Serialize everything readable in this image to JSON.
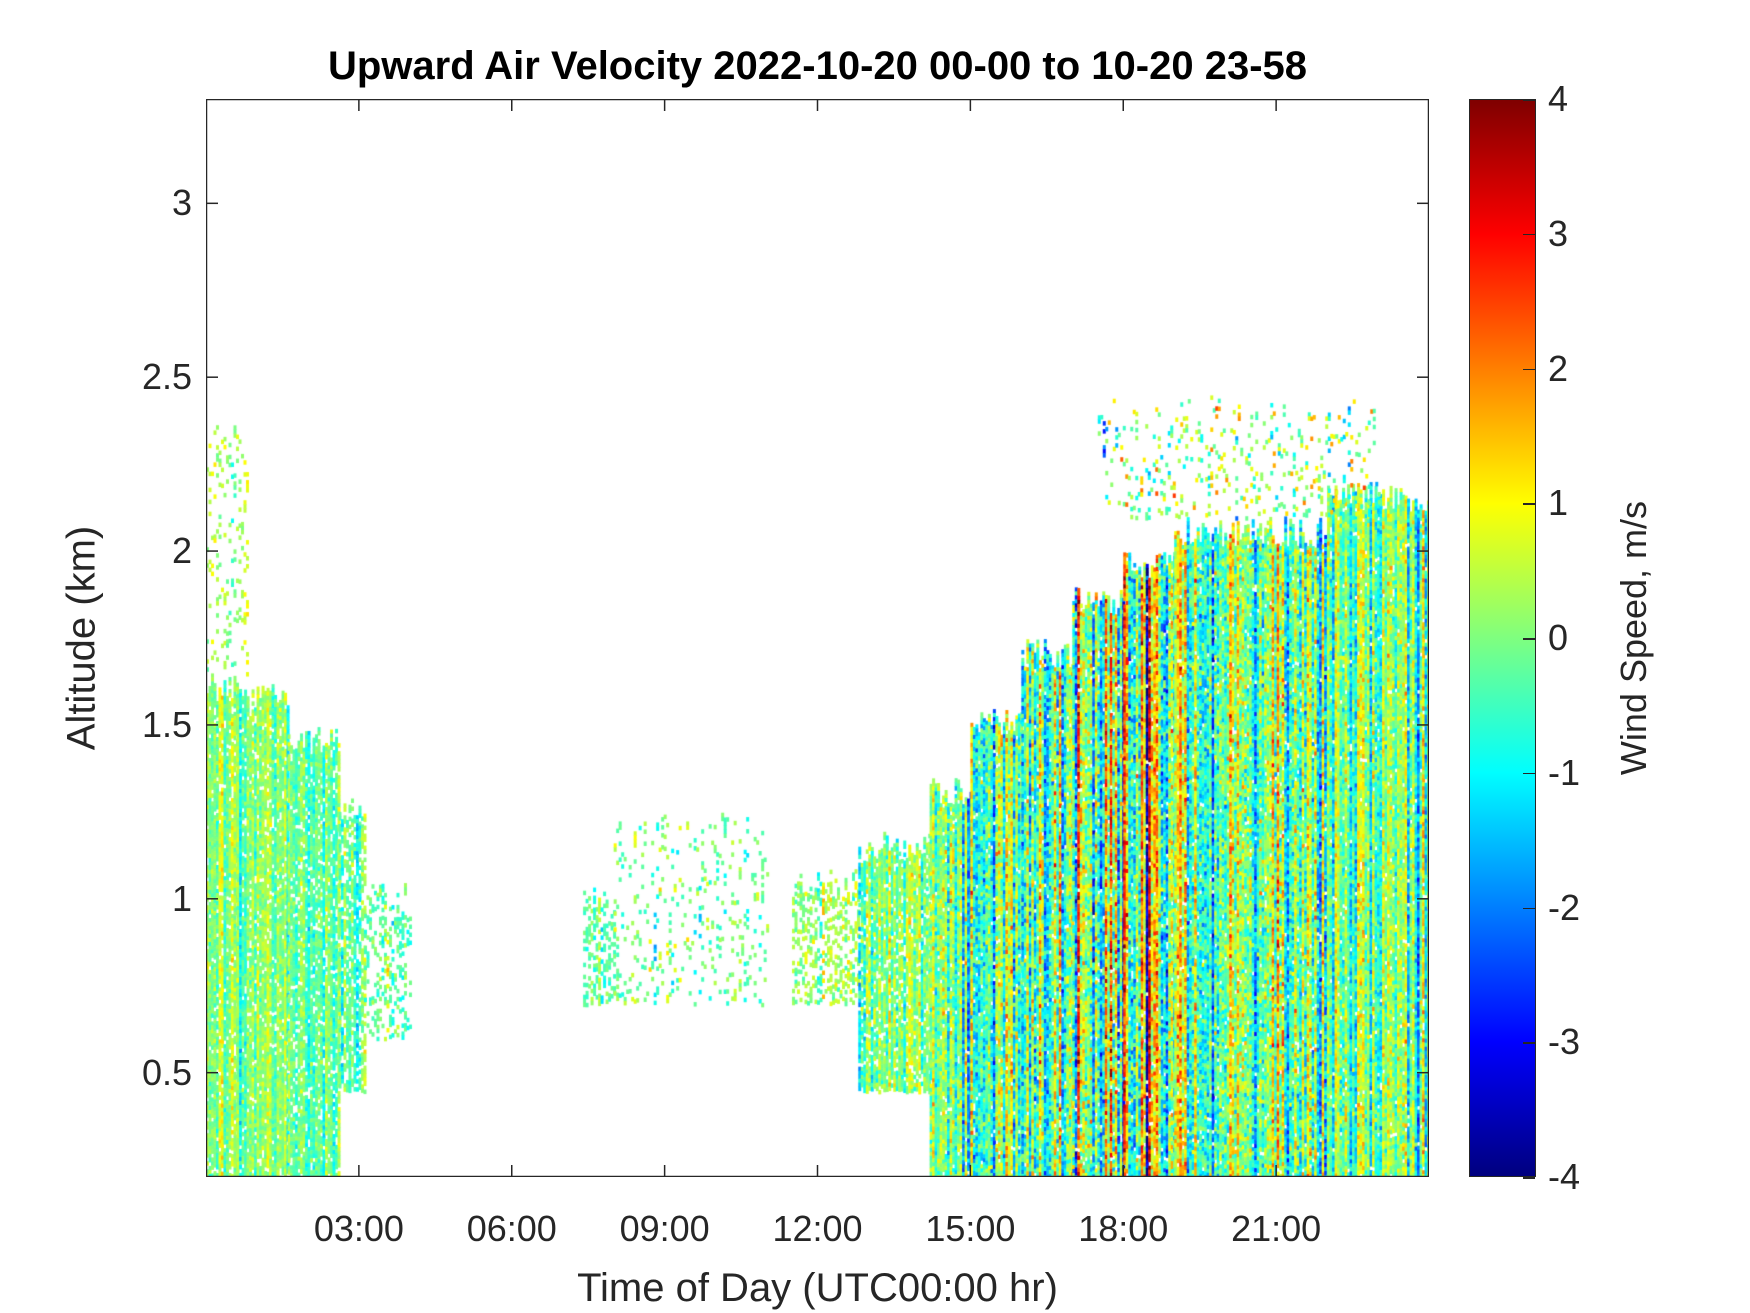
{
  "chart_data": {
    "type": "heatmap",
    "title": "Upward Air Velocity 2022-10-20 00-00 to 10-20 23-58",
    "xlabel": "Time of Day (UTC00:00 hr)",
    "ylabel": "Altitude (km)",
    "colorbar_label": "Wind Speed, m/s",
    "xlim": [
      0,
      24
    ],
    "ylim": [
      0.2,
      3.3
    ],
    "clim": [
      -4,
      4
    ],
    "colormap": "jet",
    "x_ticks": [
      3,
      6,
      9,
      12,
      15,
      18,
      21
    ],
    "x_tick_labels": [
      "03:00",
      "06:00",
      "09:00",
      "12:00",
      "15:00",
      "18:00",
      "21:00"
    ],
    "y_ticks": [
      0.5,
      1,
      1.5,
      2,
      2.5,
      3
    ],
    "y_tick_labels": [
      "0.5",
      "1",
      "1.5",
      "2",
      "2.5",
      "3"
    ],
    "c_ticks": [
      4,
      3,
      2,
      1,
      0,
      -1,
      -2,
      -3,
      -4
    ],
    "c_tick_labels": [
      "4",
      "3",
      "2",
      "1",
      "0",
      "-1",
      "-2",
      "-3",
      "-4"
    ],
    "coverage_regions": [
      {
        "t0": 0.0,
        "t1": 0.6,
        "alt0": 0.2,
        "alt1": 1.65,
        "density": 0.9,
        "mean": 0.0,
        "spread": 0.6
      },
      {
        "t0": 0.0,
        "t1": 0.8,
        "alt0": 1.65,
        "alt1": 2.4,
        "density": 0.15,
        "mean": 0.2,
        "spread": 0.5
      },
      {
        "t0": 0.6,
        "t1": 1.6,
        "alt0": 0.2,
        "alt1": 1.62,
        "density": 0.9,
        "mean": -0.1,
        "spread": 0.6
      },
      {
        "t0": 1.6,
        "t1": 2.6,
        "alt0": 0.2,
        "alt1": 1.5,
        "density": 0.85,
        "mean": -0.1,
        "spread": 0.6
      },
      {
        "t0": 2.6,
        "t1": 3.1,
        "alt0": 0.45,
        "alt1": 1.3,
        "density": 0.7,
        "mean": -0.2,
        "spread": 0.6
      },
      {
        "t0": 3.1,
        "t1": 4.0,
        "alt0": 0.6,
        "alt1": 1.05,
        "density": 0.3,
        "mean": -0.2,
        "spread": 0.6
      },
      {
        "t0": 7.4,
        "t1": 8.0,
        "alt0": 0.7,
        "alt1": 1.05,
        "density": 0.45,
        "mean": -0.4,
        "spread": 0.5
      },
      {
        "t0": 8.0,
        "t1": 11.0,
        "alt0": 0.7,
        "alt1": 1.25,
        "density": 0.12,
        "mean": 0.0,
        "spread": 0.6
      },
      {
        "t0": 11.5,
        "t1": 12.8,
        "alt0": 0.7,
        "alt1": 1.1,
        "density": 0.4,
        "mean": 0.2,
        "spread": 0.6
      },
      {
        "t0": 12.8,
        "t1": 14.2,
        "alt0": 0.45,
        "alt1": 1.2,
        "density": 0.85,
        "mean": 0.0,
        "spread": 0.8
      },
      {
        "t0": 14.2,
        "t1": 15.0,
        "alt0": 0.2,
        "alt1": 1.35,
        "density": 0.97,
        "mean": -0.3,
        "spread": 1.1
      },
      {
        "t0": 15.0,
        "t1": 16.0,
        "alt0": 0.2,
        "alt1": 1.55,
        "density": 0.97,
        "mean": -0.3,
        "spread": 1.3
      },
      {
        "t0": 16.0,
        "t1": 17.0,
        "alt0": 0.2,
        "alt1": 1.75,
        "density": 0.97,
        "mean": -0.2,
        "spread": 1.4
      },
      {
        "t0": 17.0,
        "t1": 18.0,
        "alt0": 0.2,
        "alt1": 1.9,
        "density": 0.97,
        "mean": 0.0,
        "spread": 1.5
      },
      {
        "t0": 18.0,
        "t1": 19.0,
        "alt0": 0.2,
        "alt1": 2.0,
        "density": 0.97,
        "mean": 0.0,
        "spread": 1.5
      },
      {
        "t0": 19.0,
        "t1": 22.0,
        "alt0": 0.2,
        "alt1": 2.1,
        "density": 0.97,
        "mean": -0.2,
        "spread": 1.3
      },
      {
        "t0": 22.0,
        "t1": 24.0,
        "alt0": 0.2,
        "alt1": 2.2,
        "density": 0.97,
        "mean": -0.1,
        "spread": 1.0
      },
      {
        "t0": 17.5,
        "t1": 23.0,
        "alt0": 2.1,
        "alt1": 2.45,
        "density": 0.12,
        "mean": 0.3,
        "spread": 1.2
      }
    ]
  }
}
